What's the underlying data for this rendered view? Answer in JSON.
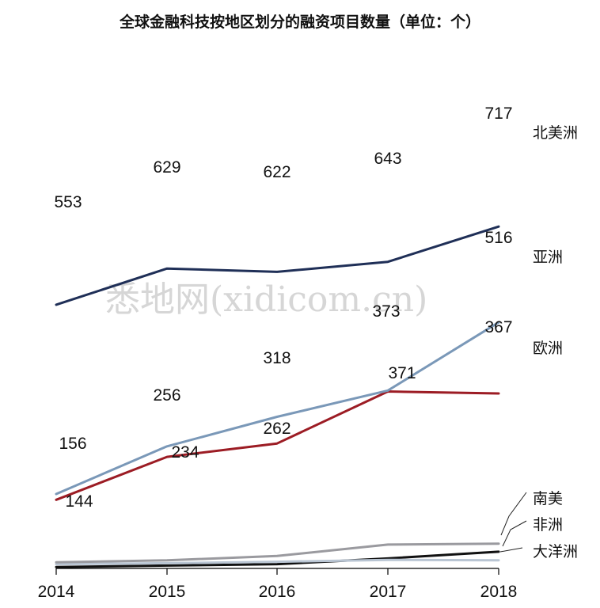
{
  "watermark": "悉地网(xidicom.cn)",
  "chart_data": {
    "type": "line",
    "title": "全球金融科技按地区划分的融资项目数量（单位：个）",
    "x": [
      "2014",
      "2015",
      "2016",
      "2017",
      "2018"
    ],
    "ylim": [
      0,
      800
    ],
    "grid": false,
    "legend": "right-inline",
    "series": [
      {
        "name": "北美洲",
        "color": "#1f2f57",
        "values": [
          553,
          629,
          622,
          643,
          717
        ],
        "labels": [
          "553",
          "629",
          "622",
          "643",
          "717"
        ]
      },
      {
        "name": "亚洲",
        "color": "#7a98b8",
        "values": [
          156,
          256,
          318,
          373,
          516
        ],
        "labels": [
          "156",
          "256",
          "318",
          "373",
          "516"
        ]
      },
      {
        "name": "欧洲",
        "color": "#9c1c24",
        "values": [
          144,
          234,
          262,
          371,
          367
        ],
        "labels": [
          "144",
          "234",
          "262",
          "371",
          "367"
        ]
      },
      {
        "name": "南美",
        "color": "#9a9a9f",
        "values": [
          13,
          17,
          26,
          50,
          52
        ],
        "labels": []
      },
      {
        "name": "非洲",
        "color": "#b9c5d3",
        "values": [
          9,
          11,
          14,
          18,
          17
        ],
        "labels": []
      },
      {
        "name": "大洋洲",
        "color": "#111111",
        "values": [
          3,
          6,
          9,
          21,
          35
        ],
        "labels": []
      }
    ]
  }
}
